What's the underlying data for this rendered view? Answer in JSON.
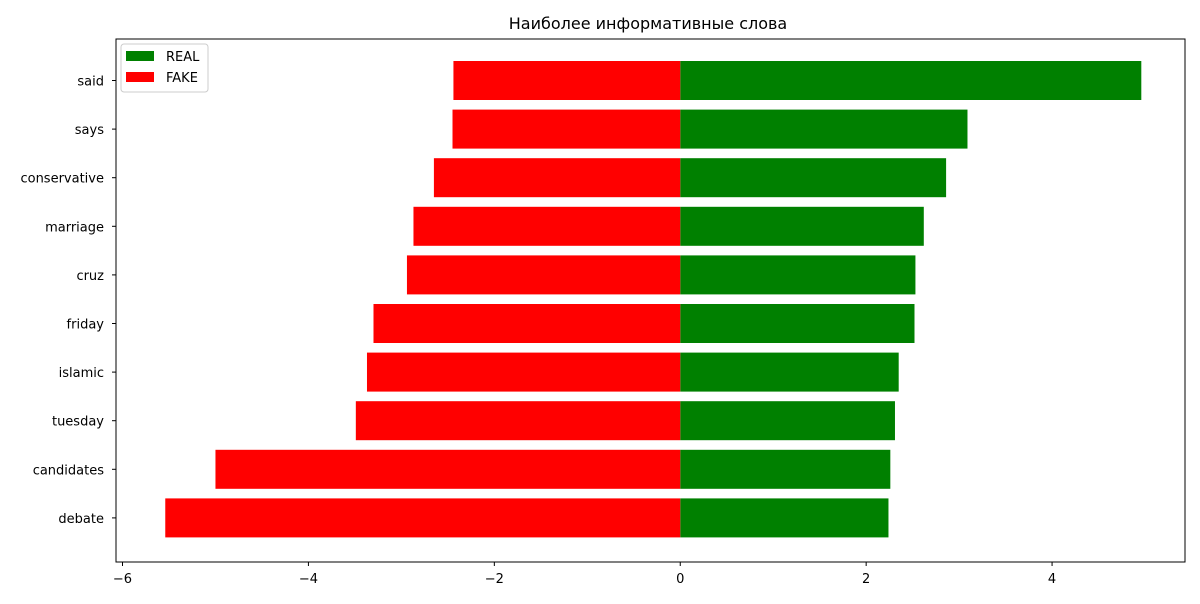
{
  "chart_data": {
    "type": "bar",
    "orientation": "horizontal",
    "title": "Наиболее информативные слова",
    "xlabel": "",
    "ylabel": "",
    "categories": [
      "said",
      "says",
      "conservative",
      "marriage",
      "cruz",
      "friday",
      "islamic",
      "tuesday",
      "candidates",
      "debate"
    ],
    "series": [
      {
        "name": "REAL",
        "color": "#008000",
        "values": [
          4.96,
          3.09,
          2.86,
          2.62,
          2.53,
          2.52,
          2.35,
          2.31,
          2.26,
          2.24
        ]
      },
      {
        "name": "FAKE",
        "color": "#ff0000",
        "values": [
          -2.44,
          -2.45,
          -2.65,
          -2.87,
          -2.94,
          -3.3,
          -3.37,
          -3.49,
          -5.0,
          -5.54
        ]
      }
    ],
    "xlim": [
      -6.07,
      5.43
    ],
    "xticks": [
      -6,
      -4,
      -2,
      0,
      2,
      4
    ],
    "xtick_labels": [
      "−6",
      "−4",
      "−2",
      "0",
      "2",
      "4"
    ],
    "grid": false,
    "legend_position": "upper-left"
  }
}
